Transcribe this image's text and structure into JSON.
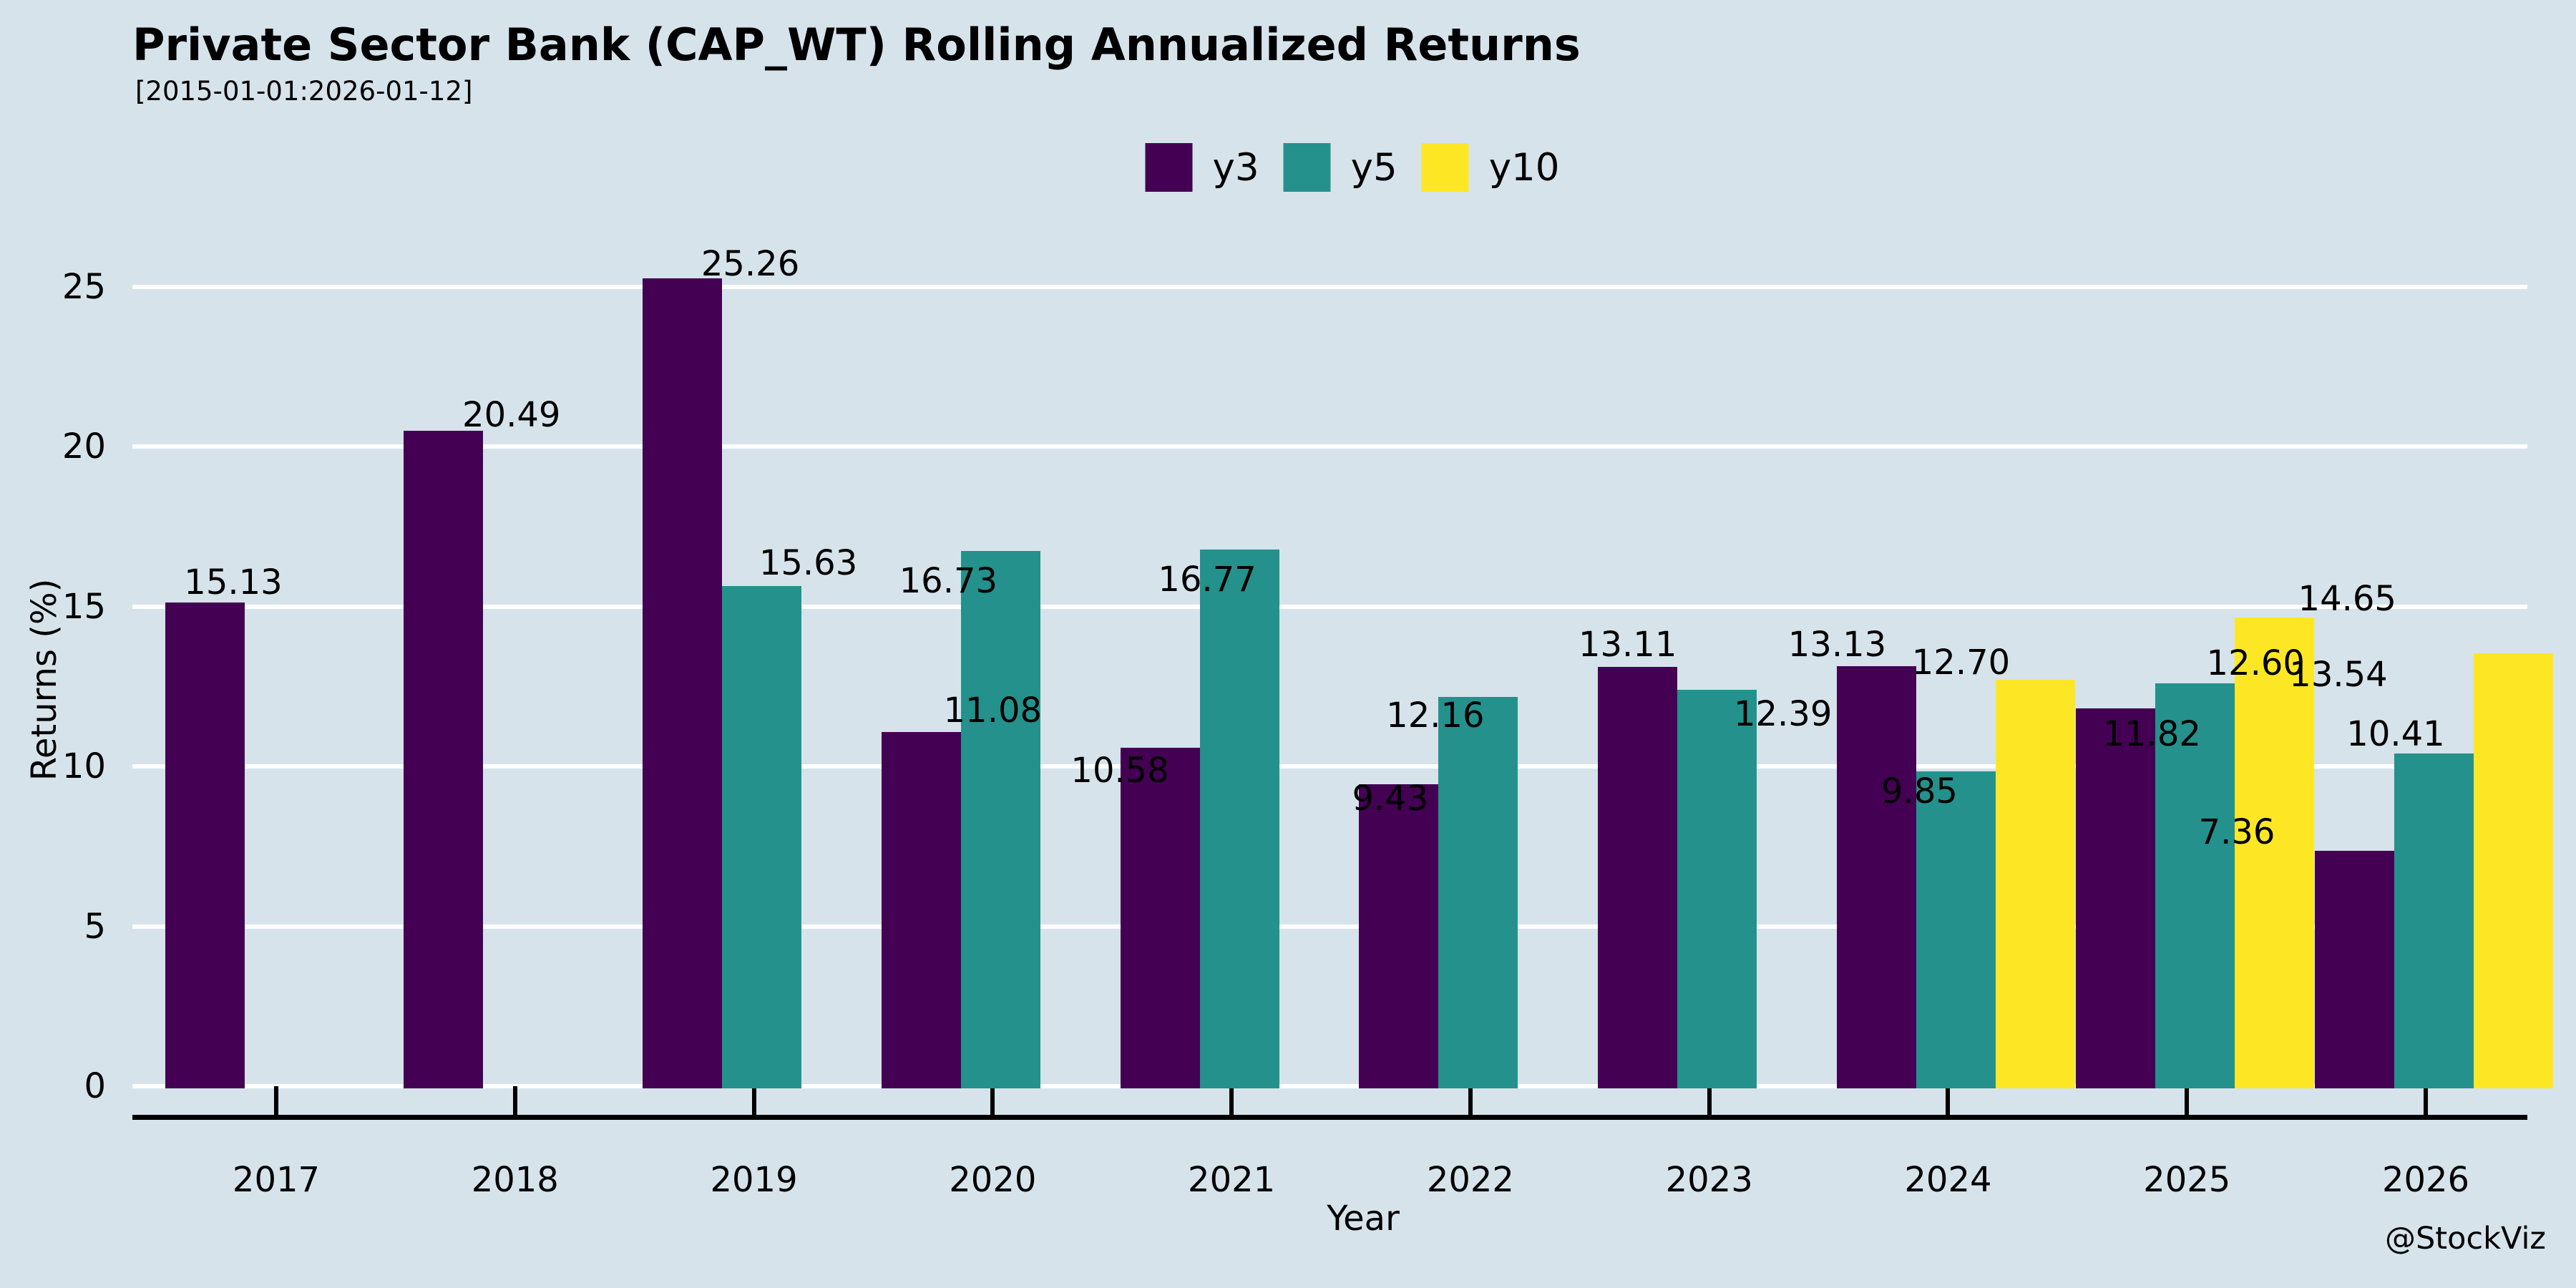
{
  "page": {
    "title": "Private Sector Bank (CAP_WT) Rolling Annualized Returns",
    "subtitle": "[2015-01-01:2026-01-12]",
    "watermark": "@StockViz"
  },
  "colors": {
    "background": "#d6e3ea",
    "grid": "#ffffff",
    "axis": "#000000",
    "text": "#000000"
  },
  "chart_data": {
    "type": "bar",
    "title": "Private Sector Bank (CAP_WT) Rolling Annualized Returns",
    "subtitle": "[2015-01-01:2026-01-12]",
    "xlabel": "Year",
    "ylabel": "Returns (%)",
    "categories": [
      "2017",
      "2018",
      "2019",
      "2020",
      "2021",
      "2022",
      "2023",
      "2024",
      "2025",
      "2026"
    ],
    "series": [
      {
        "name": "y3",
        "color": "#440154",
        "values": [
          15.13,
          20.49,
          25.26,
          11.08,
          10.58,
          9.43,
          13.11,
          13.13,
          11.82,
          7.36
        ]
      },
      {
        "name": "y5",
        "color": "#24918c",
        "values": [
          null,
          null,
          15.63,
          16.73,
          16.77,
          12.16,
          12.39,
          9.85,
          12.6,
          10.41
        ]
      },
      {
        "name": "y10",
        "color": "#fde725",
        "values": [
          null,
          null,
          null,
          null,
          null,
          null,
          null,
          12.7,
          14.65,
          13.54
        ]
      }
    ],
    "value_labels_decimals": 2,
    "yticks": [
      0,
      5,
      10,
      15,
      20,
      25
    ],
    "ylim": [
      0,
      26.5
    ],
    "grid": true,
    "legend_position": "top-center",
    "legend_entries": [
      "y3",
      "y5",
      "y10"
    ]
  }
}
